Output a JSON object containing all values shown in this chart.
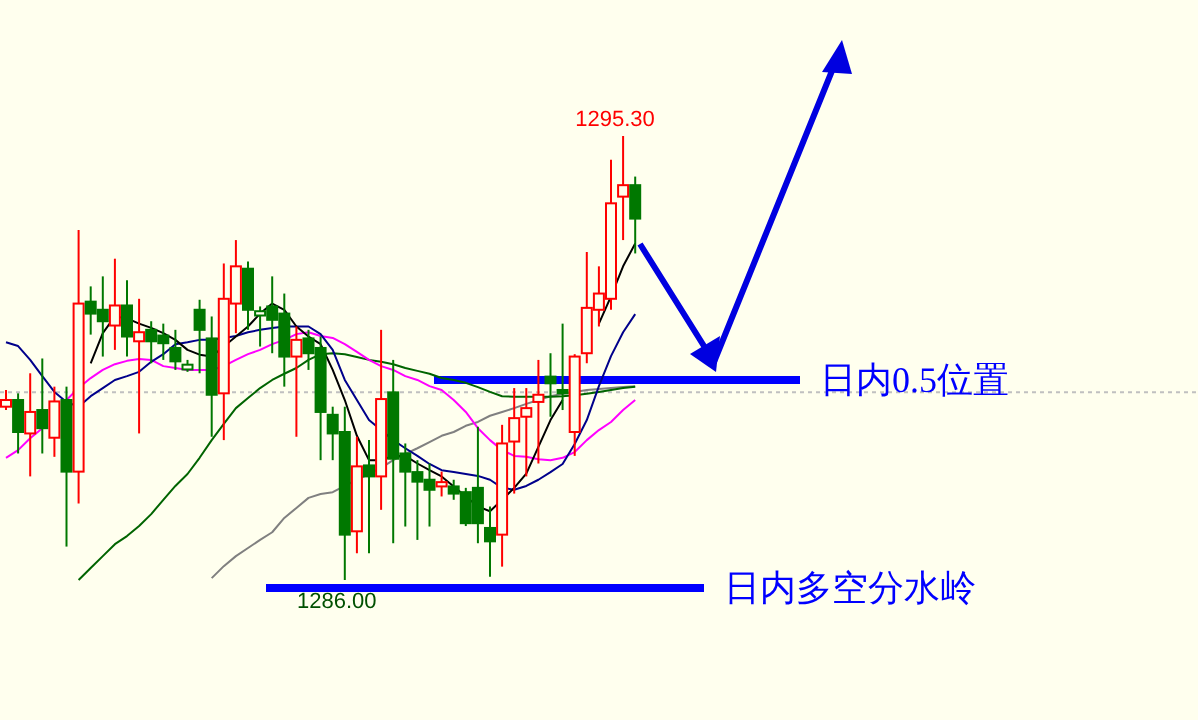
{
  "chart_data": {
    "type": "candlestick",
    "categories": [
      null,
      null,
      null,
      null,
      null,
      null,
      null,
      null,
      null,
      null,
      null,
      null,
      null,
      null,
      null,
      null,
      null,
      null,
      null,
      null,
      null,
      null,
      null,
      null,
      null,
      null,
      null,
      null,
      null,
      null,
      null,
      null,
      null,
      null,
      null,
      null,
      null,
      null,
      null,
      null,
      null,
      null,
      null,
      null,
      null,
      null,
      null,
      null,
      null,
      null,
      null,
      null,
      null
    ],
    "ohlc": [
      [
        1289.63,
        1289.98,
        1289.56,
        1289.77
      ],
      [
        1289.77,
        1289.91,
        1288.65,
        1289.1
      ],
      [
        1289.07,
        1290.33,
        1288.17,
        1289.52
      ],
      [
        1289.56,
        1290.64,
        1288.65,
        1289.18
      ],
      [
        1288.98,
        1290.05,
        1288.58,
        1289.74
      ],
      [
        1289.77,
        1290.05,
        1286.7,
        1288.27
      ],
      [
        1288.27,
        1293.33,
        1287.6,
        1291.79
      ],
      [
        1291.83,
        1292.15,
        1291.14,
        1291.58
      ],
      [
        1291.66,
        1292.36,
        1290.68,
        1291.42
      ],
      [
        1291.33,
        1292.73,
        1290.82,
        1291.75
      ],
      [
        1291.75,
        1292.28,
        1290.68,
        1291.1
      ],
      [
        1291.0,
        1291.89,
        1289.07,
        1291.19
      ],
      [
        1291.24,
        1291.42,
        1290.54,
        1291.0
      ],
      [
        1291.12,
        1291.37,
        1290.61,
        1290.96
      ],
      [
        1290.86,
        1291.24,
        1290.4,
        1290.58
      ],
      [
        1290.41,
        1290.61,
        1290.36,
        1290.51
      ],
      [
        1291.66,
        1291.87,
        1290.33,
        1291.24
      ],
      [
        1291.06,
        1291.52,
        1289.0,
        1289.88
      ],
      [
        1289.91,
        1292.63,
        1288.93,
        1291.89
      ],
      [
        1291.79,
        1293.12,
        1291.17,
        1292.57
      ],
      [
        1292.52,
        1292.67,
        1291.24,
        1291.66
      ],
      [
        1291.54,
        1291.73,
        1290.89,
        1291.63
      ],
      [
        1291.73,
        1292.36,
        1290.75,
        1291.45
      ],
      [
        1291.58,
        1292.0,
        1290.05,
        1290.68
      ],
      [
        1290.68,
        1291.31,
        1289.0,
        1291.03
      ],
      [
        1291.06,
        1291.24,
        1290.4,
        1290.75
      ],
      [
        1290.86,
        1291.1,
        1288.51,
        1289.52
      ],
      [
        1289.46,
        1289.63,
        1288.51,
        1289.07
      ],
      [
        1289.1,
        1289.63,
        1286.0,
        1286.95
      ],
      [
        1287.02,
        1289.0,
        1286.56,
        1288.38
      ],
      [
        1288.4,
        1288.93,
        1286.56,
        1288.17
      ],
      [
        1288.17,
        1291.24,
        1287.47,
        1289.79
      ],
      [
        1289.93,
        1290.61,
        1286.77,
        1288.54
      ],
      [
        1288.65,
        1288.86,
        1287.12,
        1288.27
      ],
      [
        1288.26,
        1288.51,
        1286.84,
        1288.06
      ],
      [
        1288.1,
        1288.44,
        1287.12,
        1287.89
      ],
      [
        1287.96,
        1288.27,
        1287.75,
        1288.05
      ],
      [
        1287.96,
        1288.1,
        1287.68,
        1287.81
      ],
      [
        1287.84,
        1287.93,
        1287.13,
        1287.19
      ],
      [
        1287.93,
        1289.21,
        1286.77,
        1287.19
      ],
      [
        1287.09,
        1287.54,
        1286.07,
        1286.81
      ],
      [
        1286.95,
        1289.25,
        1286.28,
        1288.86
      ],
      [
        1288.9,
        1290.02,
        1287.81,
        1289.39
      ],
      [
        1289.42,
        1290.02,
        1288.17,
        1289.6
      ],
      [
        1289.73,
        1290.61,
        1288.44,
        1289.88
      ],
      [
        1290.26,
        1290.75,
        1289.42,
        1290.12
      ],
      [
        1289.98,
        1291.37,
        1289.56,
        1289.91
      ],
      [
        1289.1,
        1290.73,
        1288.6,
        1290.68
      ],
      [
        1290.75,
        1292.87,
        1290.54,
        1291.7
      ],
      [
        1291.66,
        1292.57,
        1291.31,
        1292.0
      ],
      [
        1291.89,
        1294.8,
        1291.66,
        1293.89
      ],
      [
        1294.03,
        1295.3,
        1293.12,
        1294.27
      ],
      [
        1294.27,
        1294.45,
        1292.84,
        1293.57
      ]
    ],
    "colors": [
      "#ff0000",
      "#007800",
      "#ff0000",
      "#007800",
      "#ff0000",
      "#007800",
      "#ff0000",
      "#007800",
      "#007800",
      "#ff0000",
      "#007800",
      "#ff0000",
      "#007800",
      "#007800",
      "#007800",
      "#007800",
      "#007800",
      "#007800",
      "#ff0000",
      "#ff0000",
      "#007800",
      "#007800",
      "#007800",
      "#007800",
      "#ff0000",
      "#007800",
      "#007800",
      "#007800",
      "#007800",
      "#ff0000",
      "#007800",
      "#ff0000",
      "#007800",
      "#007800",
      "#007800",
      "#007800",
      "#ff0000",
      "#007800",
      "#007800",
      "#007800",
      "#007800",
      "#ff0000",
      "#ff0000",
      "#ff0000",
      "#ff0000",
      "#007800",
      "#007800",
      "#ff0000",
      "#ff0000",
      "#ff0000",
      "#ff0000",
      "#ff0000",
      "#007800"
    ],
    "series": [
      {
        "type": "line",
        "color": "#808080",
        "values": [
          null,
          null,
          null,
          null,
          null,
          null,
          null,
          null,
          null,
          null,
          null,
          null,
          null,
          null,
          null,
          null,
          null,
          1286.04,
          1286.29,
          1286.5,
          1286.67,
          1286.84,
          1287.0,
          1287.3,
          1287.51,
          1287.72,
          1287.8,
          1287.84,
          1287.97,
          1288.1,
          1288.22,
          1288.35,
          1288.51,
          1288.64,
          1288.76,
          1288.89,
          1289.02,
          1289.1,
          1289.23,
          1289.31,
          1289.44,
          1289.52,
          1289.6,
          1289.69,
          1289.77,
          1289.85,
          1289.9,
          1289.94,
          1289.98,
          1290.0,
          1290.02,
          1290.04,
          1290.06
        ]
      },
      {
        "type": "line",
        "color": "#006400",
        "values": [
          null,
          null,
          null,
          null,
          null,
          null,
          1286.0,
          1286.25,
          1286.5,
          1286.75,
          1286.92,
          1287.13,
          1287.38,
          1287.68,
          1287.97,
          1288.22,
          1288.56,
          1288.93,
          1289.27,
          1289.6,
          1289.81,
          1290.02,
          1290.19,
          1290.32,
          1290.44,
          1290.61,
          1290.73,
          1290.75,
          1290.73,
          1290.67,
          1290.61,
          1290.57,
          1290.52,
          1290.44,
          1290.38,
          1290.32,
          1290.23,
          1290.19,
          1290.13,
          1290.04,
          1289.94,
          1289.85,
          1289.84,
          1289.84,
          1289.84,
          1289.84,
          1289.85,
          1289.87,
          1289.9,
          1289.94,
          1289.98,
          1290.02,
          1290.05
        ]
      },
      {
        "type": "line",
        "color": "#ff00ff",
        "values": [
          1288.56,
          1288.72,
          1288.97,
          1289.18,
          null,
          1289.77,
          1290.02,
          1290.23,
          1290.4,
          1290.52,
          1290.59,
          1290.63,
          1290.61,
          1290.48,
          1290.44,
          1290.4,
          1290.4,
          1290.4,
          1290.48,
          1290.61,
          1290.73,
          1290.82,
          1290.94,
          1291.03,
          1291.15,
          1291.19,
          1291.11,
          1291.07,
          1290.94,
          1290.78,
          1290.61,
          1290.48,
          1290.4,
          1290.27,
          1290.19,
          1290.06,
          1289.98,
          1289.77,
          1289.52,
          1289.18,
          1288.93,
          1288.72,
          1288.6,
          1288.58,
          1288.53,
          1288.51,
          1288.56,
          1288.68,
          1288.93,
          1289.14,
          1289.31,
          1289.56,
          1289.77
        ]
      },
      {
        "type": "line",
        "color": "#00008b",
        "values": [
          1290.98,
          1290.9,
          1290.61,
          1290.27,
          1289.94,
          1289.73,
          1289.63,
          1289.85,
          1290.02,
          1290.19,
          1290.27,
          1290.36,
          1290.57,
          1290.73,
          1290.94,
          1290.98,
          1291.03,
          1291.03,
          1291.07,
          1291.11,
          1291.19,
          1291.24,
          1291.28,
          1291.31,
          1291.31,
          1291.31,
          1291.15,
          1290.82,
          1290.19,
          1289.77,
          1289.35,
          1289.14,
          1288.93,
          1288.76,
          1288.6,
          1288.43,
          1288.3,
          1288.26,
          1288.22,
          1288.18,
          1288.1,
          1287.93,
          1287.89,
          1287.97,
          1288.1,
          1288.26,
          1288.43,
          1288.85,
          1289.35,
          1290.06,
          1290.69,
          1291.19,
          1291.57
        ]
      },
      {
        "type": "line",
        "color": "#000000",
        "values": [
          null,
          null,
          null,
          null,
          null,
          null,
          null,
          1290.54,
          1291.17,
          1291.52,
          1291.48,
          1291.37,
          1291.28,
          1291.17,
          1291.03,
          1290.82,
          1290.72,
          1290.68,
          1290.89,
          1291.1,
          1291.31,
          1291.58,
          1291.79,
          1291.66,
          1291.31,
          1291.1,
          1290.94,
          1290.4,
          1289.77,
          1289.02,
          1288.51,
          1288.51,
          1288.6,
          1288.6,
          1288.44,
          1288.3,
          1288.17,
          1287.96,
          1287.75,
          1287.54,
          1287.44,
          1287.68,
          1287.93,
          1288.23,
          1288.79,
          1289.35,
          1289.77,
          null,
          null,
          1291.37,
          1291.94,
          1292.57,
          1293.05
        ]
      }
    ],
    "ref_lines": [
      {
        "axis": "y",
        "value": 1289.93,
        "color": "#c0c0c0",
        "line_style": "dotted"
      },
      {
        "axis": "y",
        "value": 1290.19,
        "label": "日内0.5位置",
        "color": "#0000ff",
        "line_style": "solid"
      },
      {
        "axis": "y",
        "value": 1285.83,
        "label": "日内多空分水岭",
        "color": "#0000ff",
        "line_style": "solid"
      }
    ],
    "annotations": [
      {
        "text": "1295.30",
        "y": 1295.3
      },
      {
        "text": "1286.00",
        "y": 1286.0
      }
    ]
  }
}
